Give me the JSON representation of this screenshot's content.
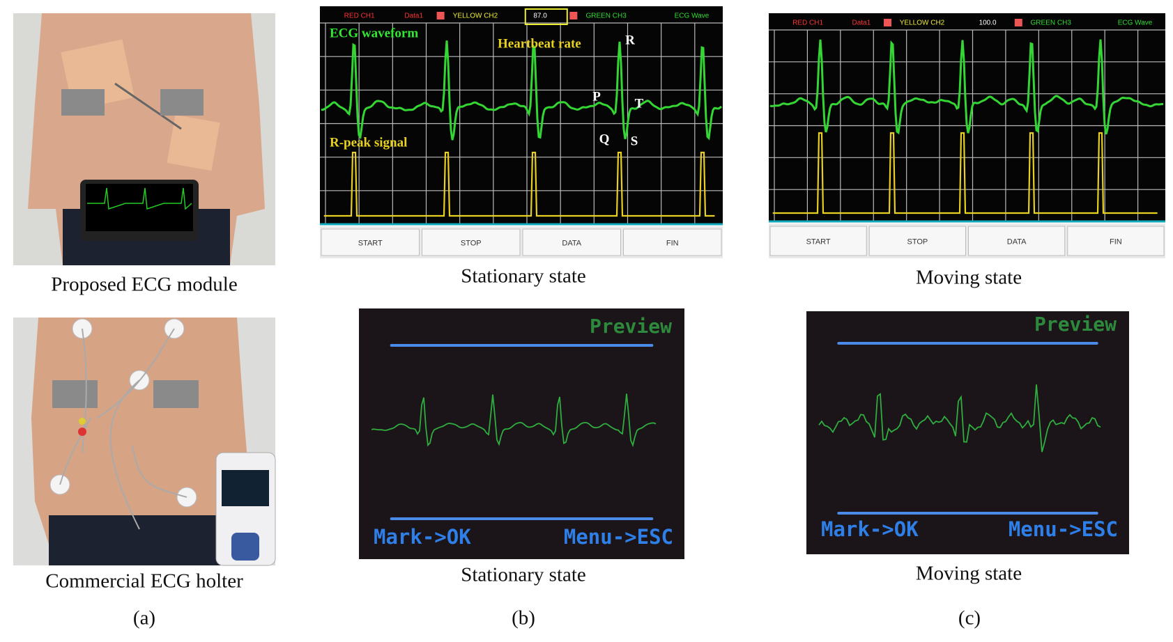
{
  "panel_a": {
    "label": "(a)",
    "photos": [
      {
        "caption": "Proposed ECG module"
      },
      {
        "caption": "Commercial ECG holter"
      }
    ]
  },
  "panel_b": {
    "label": "(b)",
    "phone": {
      "header": [
        "RED CH1",
        "Data1",
        "YELLOW CH2",
        "87.0",
        "GREEN CH3",
        "ECG Wave"
      ],
      "annotations": {
        "waveform": "ECG waveform",
        "rate": "Heartbeat rate",
        "peak": "R-peak signal",
        "r": "R",
        "p": "P",
        "t": "T",
        "q": "Q",
        "s": "S"
      },
      "buttons": [
        "START",
        "STOP",
        "DATA",
        "FIN"
      ],
      "caption": "Stationary state"
    },
    "holter": {
      "title": "Preview",
      "keys": [
        "Mark->OK",
        "Menu->ESC"
      ],
      "caption": "Stationary state"
    }
  },
  "panel_c": {
    "label": "(c)",
    "phone": {
      "header": [
        "RED CH1",
        "Data1",
        "YELLOW CH2",
        "100.0",
        "GREEN CH3",
        "ECG Wave"
      ],
      "buttons": [
        "START",
        "STOP",
        "DATA",
        "FIN"
      ],
      "caption": "Moving state"
    },
    "holter": {
      "title": "Preview",
      "keys": [
        "Mark->OK",
        "Menu->ESC"
      ],
      "caption": "Moving state"
    }
  }
}
